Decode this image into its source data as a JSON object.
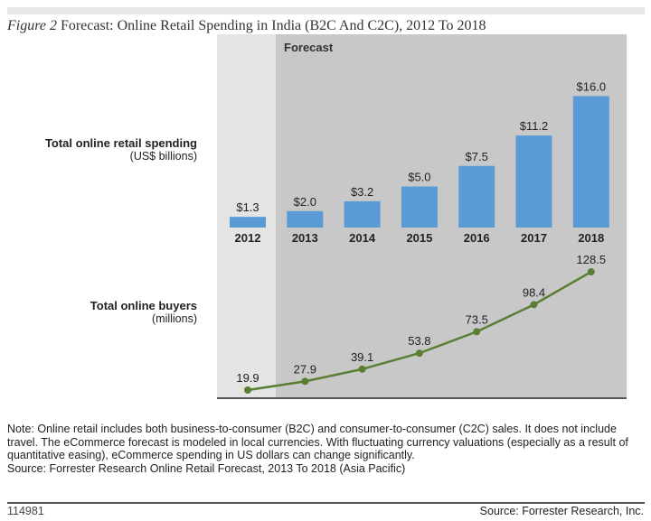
{
  "title_prefix": "Figure 2",
  "title": "Forecast: Online Retail Spending in India (B2C And C2C), 2012 To 2018",
  "chart_data": {
    "type": "bar+line",
    "forecast_label": "Forecast",
    "categories": [
      "2012",
      "2013",
      "2014",
      "2015",
      "2016",
      "2017",
      "2018"
    ],
    "bars": {
      "label": "Total online retail spending",
      "unit": "(US$ billions)",
      "values": [
        1.3,
        2.0,
        3.2,
        5.0,
        7.5,
        11.2,
        16.0
      ],
      "labels": [
        "$1.3",
        "$2.0",
        "$3.2",
        "$5.0",
        "$7.5",
        "$11.2",
        "$16.0"
      ],
      "color": "#5b9bd5"
    },
    "line": {
      "label": "Total online buyers",
      "unit": "(millions)",
      "values": [
        19.9,
        27.9,
        39.1,
        53.8,
        73.5,
        98.4,
        128.5
      ],
      "color": "#5a7f34"
    },
    "colors": {
      "actual_bg": "#e4e4e4",
      "forecast_bg": "#c8c8c8"
    }
  },
  "note": "Note: Online retail includes both business-to-consumer (B2C) and consumer-to-consumer (C2C) sales. It does not include travel. The eCommerce forecast is modeled in local currencies. With fluctuating currency valuations (especially as a result of quantitative easing), eCommerce spending in US dollars can change significantly.",
  "source_line": "Source: Forrester Research Online Retail Forecast, 2013 To 2018 (Asia Pacific)",
  "footer_id": "114981",
  "footer_source": "Source: Forrester Research, Inc."
}
